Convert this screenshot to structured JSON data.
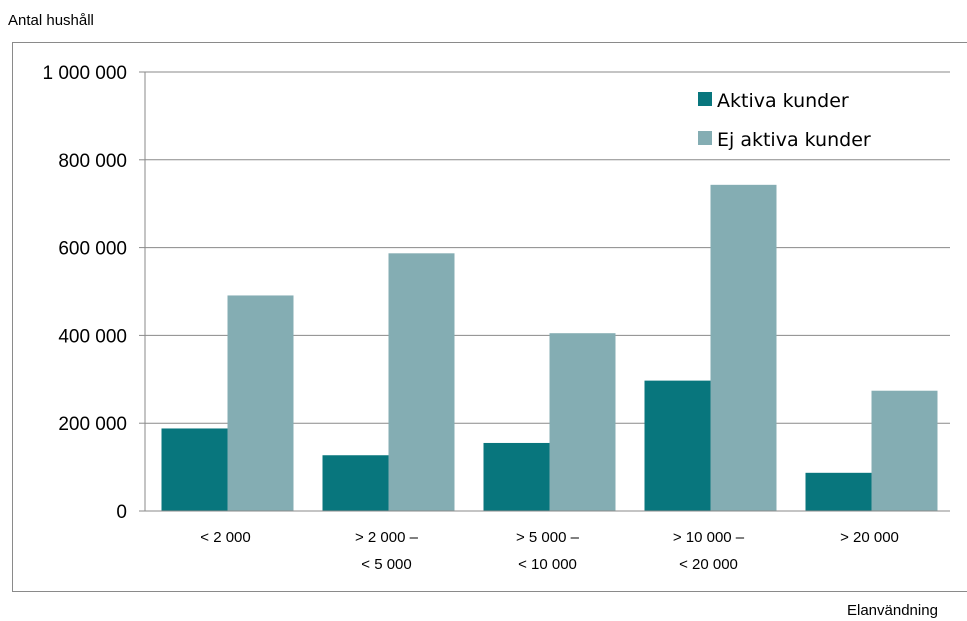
{
  "chart_data": {
    "type": "bar",
    "ylabel": "Antal hushåll",
    "xlabel": "Elanvändning",
    "categories": [
      [
        "< 2 000"
      ],
      [
        "> 2 000 –",
        "< 5 000"
      ],
      [
        "> 5 000 –",
        "< 10 000"
      ],
      [
        "> 10 000 –",
        "< 20 000"
      ],
      [
        "> 20 000"
      ]
    ],
    "series": [
      {
        "name": "Aktiva kunder",
        "color": "#08767d",
        "values": [
          188000,
          127000,
          155000,
          297000,
          87000
        ]
      },
      {
        "name": "Ej aktiva kunder",
        "color": "#84adb3",
        "values": [
          491000,
          587000,
          405000,
          743000,
          274000
        ]
      }
    ],
    "ylim": [
      0,
      1000000
    ],
    "yticks": [
      {
        "value": 0,
        "label": "0"
      },
      {
        "value": 200000,
        "label": "200 000"
      },
      {
        "value": 400000,
        "label": "400 000"
      },
      {
        "value": 600000,
        "label": "600 000"
      },
      {
        "value": 800000,
        "label": "800 000"
      },
      {
        "value": 1000000,
        "label": "1 000 000"
      }
    ],
    "grid": true,
    "legend": "top-right"
  }
}
